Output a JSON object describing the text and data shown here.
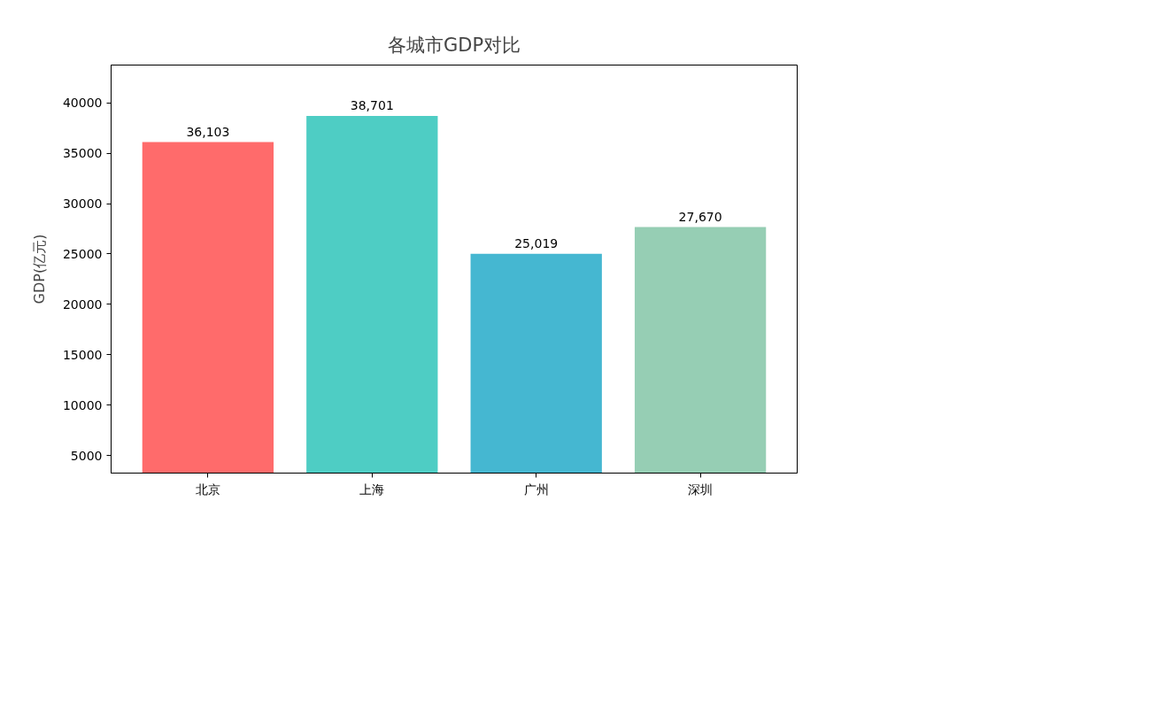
{
  "chart_data": {
    "type": "bar",
    "title": "各城市GDP对比",
    "ylabel": "GDP(亿元)",
    "categories": [
      "北京",
      "上海",
      "广州",
      "深圳"
    ],
    "values": [
      36103,
      38701,
      25019,
      27670
    ],
    "colors": [
      "#ff6b6b",
      "#4ecdc4",
      "#45b7d1",
      "#96ceb4"
    ],
    "value_labels": [
      "36,103",
      "38,701",
      "25,019",
      "27,670"
    ],
    "ylim": [
      3250,
      43750
    ],
    "yticks": [
      5000,
      10000,
      15000,
      20000,
      25000,
      30000,
      35000,
      40000
    ]
  }
}
